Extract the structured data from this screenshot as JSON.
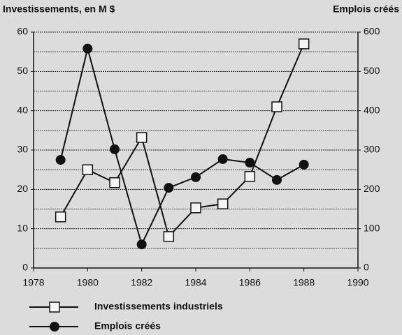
{
  "chart_data": {
    "type": "line",
    "y_label": "Investissements, en M $",
    "y2_label": "Emplois créés",
    "x": [
      1979,
      1980,
      1981,
      1982,
      1983,
      1984,
      1985,
      1986,
      1987,
      1988
    ],
    "xlim": [
      1978,
      1990
    ],
    "xticks": [
      1978,
      1980,
      1982,
      1984,
      1986,
      1988,
      1990
    ],
    "ylim": [
      0,
      60
    ],
    "yticks": [
      0,
      10,
      20,
      30,
      40,
      50,
      60
    ],
    "y2lim": [
      0,
      600
    ],
    "y2ticks": [
      0,
      100,
      200,
      300,
      400,
      500,
      600
    ],
    "grid": true,
    "legend": "bottom",
    "series": [
      {
        "name": "Investissements industriels",
        "color": "#111111",
        "marker": "square",
        "values": [
          13,
          25,
          21.7,
          33.2,
          8,
          15.3,
          16.3,
          23.3,
          41,
          57
        ]
      },
      {
        "name": "Emplois créés",
        "color": "#111111",
        "marker": "circle",
        "axis": "y2",
        "values": [
          275,
          558,
          302,
          60,
          204,
          231,
          277,
          268,
          224,
          263
        ]
      }
    ]
  }
}
